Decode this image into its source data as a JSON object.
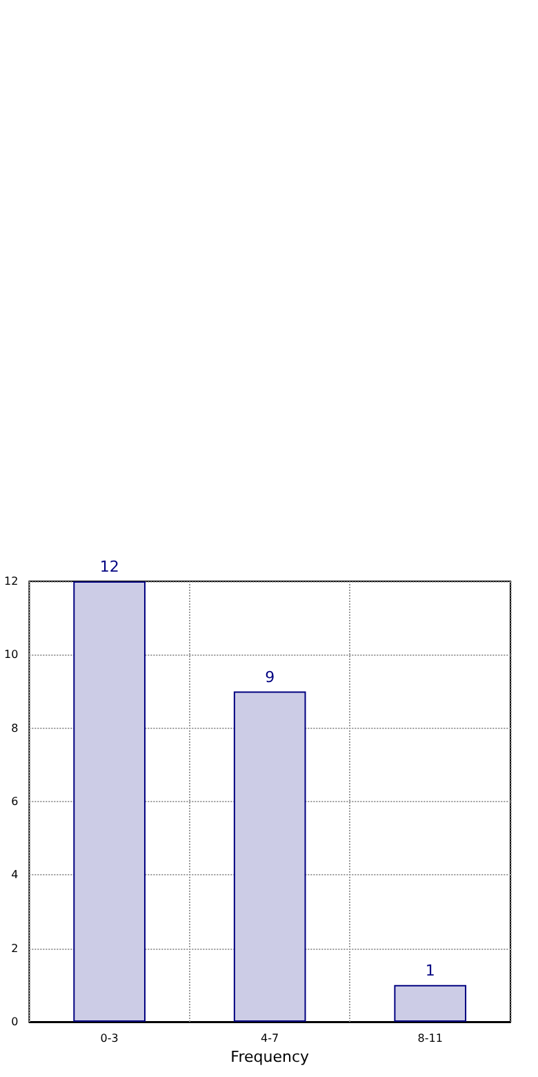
{
  "chart_data": {
    "type": "bar",
    "xlabel": "Frequency",
    "categories": [
      "0-3",
      "4-7",
      "8-11"
    ],
    "values": [
      12,
      9,
      1
    ],
    "color": "#cccce6",
    "ylim": [
      0,
      12
    ],
    "yticks": [
      0,
      2,
      4,
      6,
      8,
      10,
      12
    ],
    "grid": true,
    "data_labels": true
  }
}
